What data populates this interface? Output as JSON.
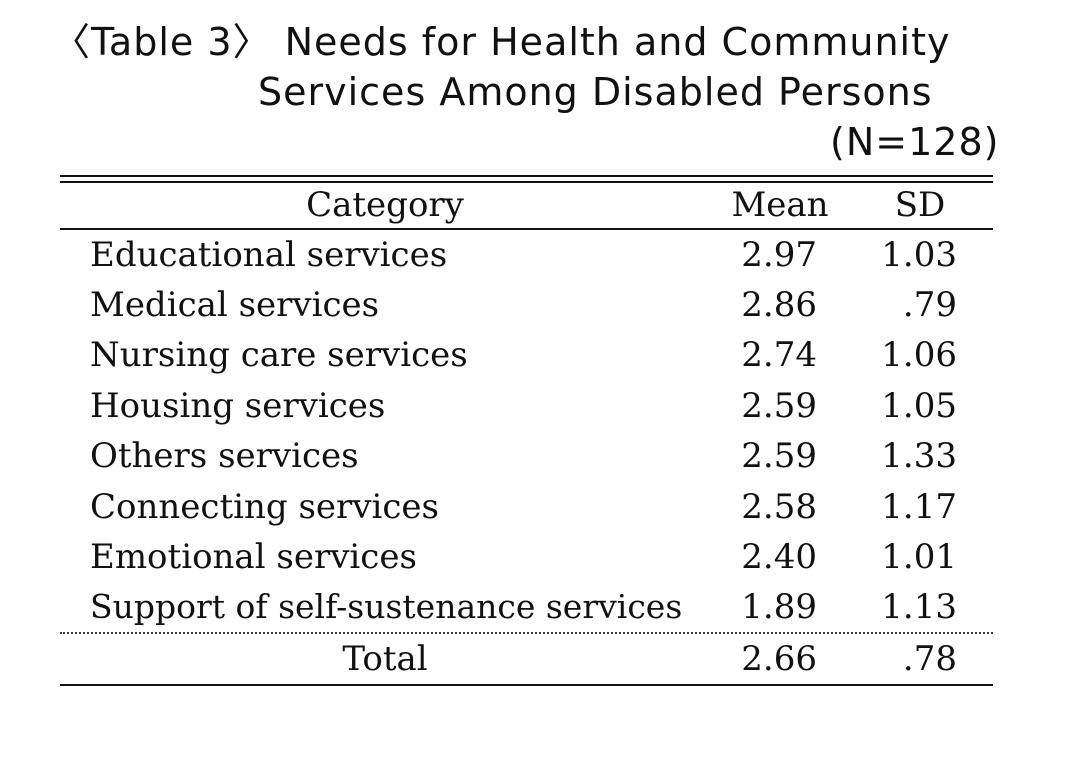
{
  "caption": {
    "line1": "〈Table 3〉 Needs for Health and Community",
    "line2": "Services Among Disabled Persons",
    "n_label": "(N=128)"
  },
  "table": {
    "headers": {
      "category": "Category",
      "mean": "Mean",
      "sd": "SD"
    },
    "rows": [
      {
        "category": "Educational services",
        "mean": "2.97",
        "sd": "1.03"
      },
      {
        "category": "Medical services",
        "mean": "2.86",
        "sd": ".79"
      },
      {
        "category": "Nursing care services",
        "mean": "2.74",
        "sd": "1.06"
      },
      {
        "category": "Housing services",
        "mean": "2.59",
        "sd": "1.05"
      },
      {
        "category": "Others services",
        "mean": "2.59",
        "sd": "1.33"
      },
      {
        "category": "Connecting services",
        "mean": "2.58",
        "sd": "1.17"
      },
      {
        "category": "Emotional services",
        "mean": "2.40",
        "sd": "1.01"
      },
      {
        "category": "Support of self-sustenance services",
        "mean": "1.89",
        "sd": "1.13"
      }
    ],
    "total": {
      "category": "Total",
      "mean": "2.66",
      "sd": ".78"
    }
  }
}
